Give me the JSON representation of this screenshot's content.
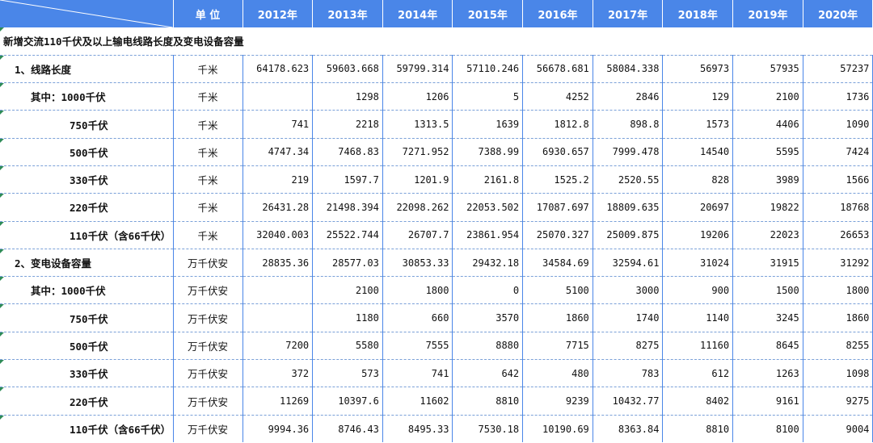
{
  "header": {
    "unit_label": "单    位",
    "years": [
      "2012年",
      "2013年",
      "2014年",
      "2015年",
      "2016年",
      "2017年",
      "2018年",
      "2019年",
      "2020年"
    ]
  },
  "section_title": "新增交流110千伏及以上输电线路长度及变电设备容量",
  "rows": [
    {
      "name": "1、线路长度",
      "unit": "千米",
      "values": [
        "64178.623",
        "59603.668",
        "59799.314",
        "57110.246",
        "56678.681",
        "58084.338",
        "56973",
        "57935",
        "57237"
      ]
    },
    {
      "name": "其中：1000千伏",
      "unit": "千米",
      "values": [
        "",
        "1298",
        "1206",
        "5",
        "4252",
        "2846",
        "129",
        "2100",
        "1736"
      ]
    },
    {
      "name": "750千伏",
      "unit": "千米",
      "values": [
        "741",
        "2218",
        "1313.5",
        "1639",
        "1812.8",
        "898.8",
        "1573",
        "4406",
        "1090"
      ]
    },
    {
      "name": "500千伏",
      "unit": "千米",
      "values": [
        "4747.34",
        "7468.83",
        "7271.952",
        "7388.99",
        "6930.657",
        "7999.478",
        "14540",
        "5595",
        "7424"
      ]
    },
    {
      "name": "330千伏",
      "unit": "千米",
      "values": [
        "219",
        "1597.7",
        "1201.9",
        "2161.8",
        "1525.2",
        "2520.55",
        "828",
        "3989",
        "1566"
      ]
    },
    {
      "name": "220千伏",
      "unit": "千米",
      "values": [
        "26431.28",
        "21498.394",
        "22098.262",
        "22053.502",
        "17087.697",
        "18809.635",
        "20697",
        "19822",
        "18768"
      ]
    },
    {
      "name": "110千伏（含66千伏）",
      "unit": "千米",
      "values": [
        "32040.003",
        "25522.744",
        "26707.7",
        "23861.954",
        "25070.327",
        "25009.875",
        "19206",
        "22023",
        "26653"
      ]
    },
    {
      "name": "2、变电设备容量",
      "unit": "万千伏安",
      "values": [
        "28835.36",
        "28577.03",
        "30853.33",
        "29432.18",
        "34584.69",
        "32594.61",
        "31024",
        "31915",
        "31292"
      ]
    },
    {
      "name": "其中：1000千伏",
      "unit": "万千伏安",
      "values": [
        "",
        "2100",
        "1800",
        "0",
        "5100",
        "3000",
        "900",
        "1500",
        "1800"
      ]
    },
    {
      "name": "750千伏",
      "unit": "万千伏安",
      "values": [
        "",
        "1180",
        "660",
        "3570",
        "1860",
        "1740",
        "1140",
        "3245",
        "1860"
      ]
    },
    {
      "name": "500千伏",
      "unit": "万千伏安",
      "values": [
        "7200",
        "5580",
        "7555",
        "8880",
        "7715",
        "8275",
        "11160",
        "8645",
        "8255"
      ]
    },
    {
      "name": "330千伏",
      "unit": "万千伏安",
      "values": [
        "372",
        "573",
        "741",
        "642",
        "480",
        "783",
        "612",
        "1263",
        "1098"
      ]
    },
    {
      "name": "220千伏",
      "unit": "万千伏安",
      "values": [
        "11269",
        "10397.6",
        "11602",
        "8810",
        "9239",
        "10432.77",
        "8402",
        "9161",
        "9275"
      ]
    },
    {
      "name": "110千伏（含66千伏）",
      "unit": "万千伏安",
      "values": [
        "9994.36",
        "8746.43",
        "8495.33",
        "7530.18",
        "10190.69",
        "8363.84",
        "8810",
        "8100",
        "9004"
      ]
    }
  ]
}
